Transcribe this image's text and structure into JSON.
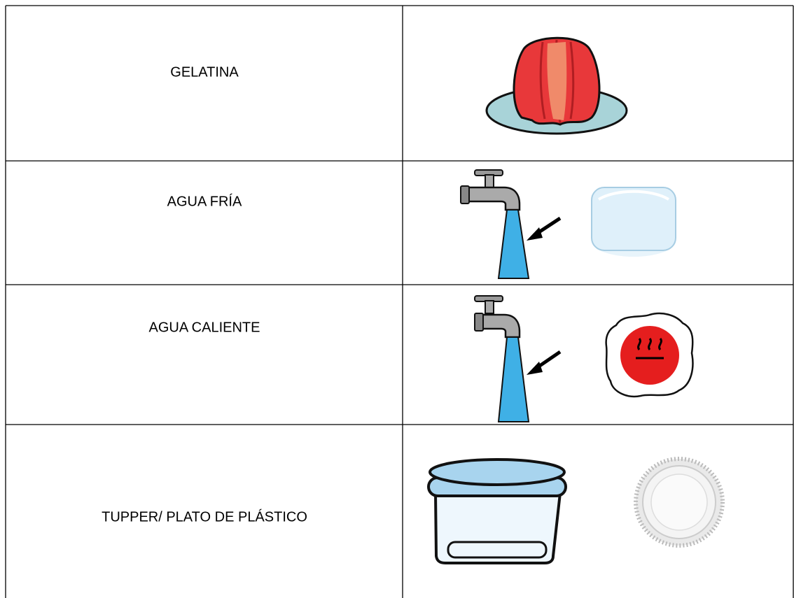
{
  "table": {
    "rows": [
      {
        "label": "GELATINA"
      },
      {
        "label": "AGUA FRÍA"
      },
      {
        "label": "AGUA CALIENTE"
      },
      {
        "label": "TUPPER/ PLATO DE PLÁSTICO"
      }
    ]
  }
}
